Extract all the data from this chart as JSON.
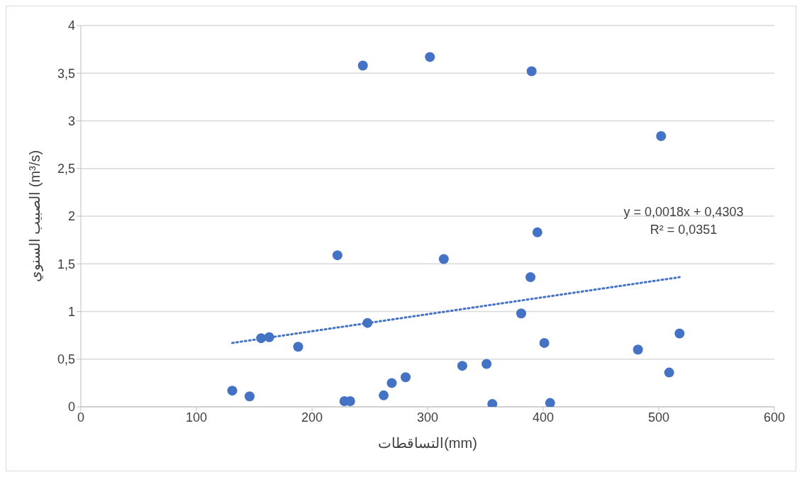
{
  "chart_data": {
    "type": "scatter",
    "xlabel": "التساقطات(mm)",
    "ylabel": "الصبيب السنوي (m³/s)",
    "annotations": [
      "y = 0,0018x + 0,4303",
      "R² = 0,0351"
    ],
    "xlim": [
      0,
      600
    ],
    "xticks": [
      0,
      100,
      200,
      300,
      400,
      500,
      600
    ],
    "ylim": [
      0,
      4
    ],
    "yticks": [
      0,
      {
        "value": 0.5,
        "label": "0,5"
      },
      1,
      {
        "value": 1.5,
        "label": "1,5"
      },
      2,
      {
        "value": 2.5,
        "label": "2,5"
      },
      3,
      {
        "value": 3.5,
        "label": "3,5"
      },
      4
    ],
    "grid": "y",
    "marker": "circle",
    "series": [
      {
        "type": "scatter",
        "color": "#4472c4",
        "x": [
          131,
          146,
          156,
          163,
          188,
          222,
          228,
          233,
          244,
          248,
          262,
          269,
          281,
          302,
          314,
          330,
          351,
          356,
          381,
          390,
          389,
          395,
          401,
          406,
          482,
          502,
          509,
          518
        ],
        "values": [
          0.17,
          0.11,
          0.72,
          0.73,
          0.63,
          1.59,
          0.06,
          0.06,
          3.58,
          0.88,
          0.12,
          0.25,
          0.31,
          3.67,
          1.55,
          0.43,
          0.45,
          0.03,
          0.98,
          3.52,
          1.36,
          1.83,
          0.67,
          0.04,
          0.6,
          2.84,
          0.36,
          0.77
        ]
      },
      {
        "type": "line",
        "color": "#4472c4",
        "line_style": "dotted",
        "marker": "none",
        "x": [
          131,
          518
        ],
        "values": [
          0.67,
          1.36
        ]
      }
    ]
  }
}
